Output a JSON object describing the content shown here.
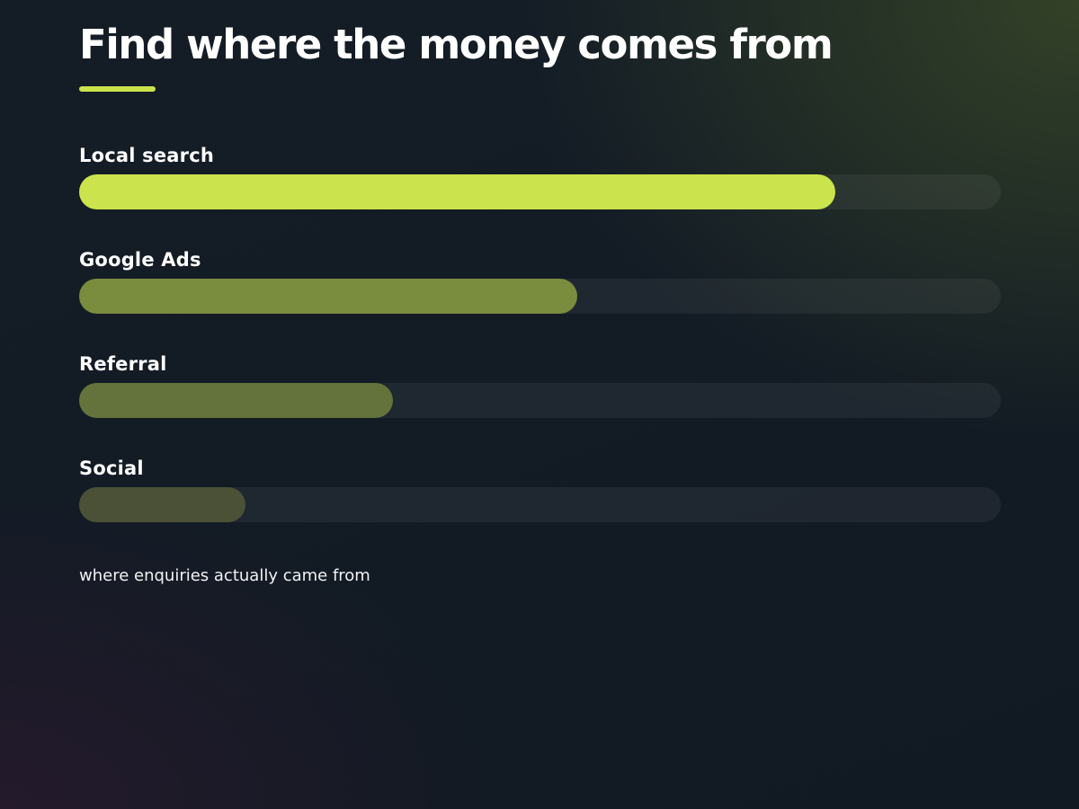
{
  "colors": {
    "accent": "#cbe34c",
    "bar_fills": [
      "#cbe34c",
      "#7a8c3e",
      "#64733b",
      "#4a5137"
    ]
  },
  "chart_data": {
    "type": "bar",
    "orientation": "horizontal",
    "title": "Find where the money comes from",
    "caption": "where enquiries actually came from",
    "categories": [
      "Local search",
      "Google Ads",
      "Referral",
      "Social"
    ],
    "values": [
      82,
      54,
      34,
      18
    ],
    "xlim": [
      0,
      100
    ],
    "grid": false,
    "legend": "none"
  }
}
